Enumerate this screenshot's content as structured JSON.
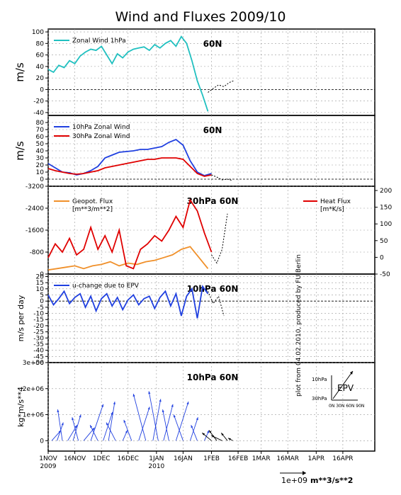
{
  "title": "Wind and Fluxes 2009/10",
  "credit": "plot from 04.02.2010, produced by FU Berlin",
  "x_axis": {
    "ticks": [
      "1NOV",
      "16NOV",
      "1DEC",
      "16DEC",
      "1JAN",
      "16JAN",
      "1FEB",
      "16FEB",
      "1MAR",
      "16MAR",
      "1APR",
      "16APR"
    ],
    "tick_days": [
      0,
      15,
      30,
      45,
      61,
      76,
      92,
      107,
      120,
      135,
      151,
      166
    ],
    "year_labels": [
      {
        "label": "2009",
        "day": 0
      },
      {
        "label": "2010",
        "day": 61
      }
    ],
    "range_days": [
      0,
      184
    ]
  },
  "scale_note": {
    "value": "1e+09",
    "unit": "m**3/s**2"
  },
  "chart_data": [
    {
      "type": "line",
      "label": "60N",
      "ylabel": "m/s",
      "ylim": [
        -45,
        105
      ],
      "yticks": [
        -40,
        -20,
        0,
        20,
        40,
        60,
        80,
        100
      ],
      "zero_line": true,
      "series": [
        {
          "name": "Zonal Wind 1hPa",
          "color": "#20c0c0",
          "x": [
            0,
            3,
            6,
            9,
            12,
            15,
            18,
            21,
            24,
            27,
            30,
            33,
            36,
            39,
            42,
            45,
            48,
            51,
            54,
            57,
            60,
            63,
            66,
            69,
            72,
            75,
            78,
            81,
            84,
            87,
            90
          ],
          "y": [
            35,
            30,
            42,
            38,
            50,
            45,
            58,
            65,
            70,
            68,
            75,
            60,
            45,
            62,
            55,
            65,
            70,
            72,
            74,
            68,
            78,
            72,
            80,
            85,
            75,
            92,
            80,
            50,
            15,
            -10,
            -38
          ]
        },
        {
          "name": "",
          "color": "#000000",
          "dashed": true,
          "x": [
            90,
            93,
            96,
            99,
            102,
            105
          ],
          "y": [
            -5,
            2,
            8,
            5,
            12,
            16
          ]
        }
      ]
    },
    {
      "type": "line",
      "label": "60N",
      "ylabel": "m/s",
      "ylim": [
        -10,
        90
      ],
      "yticks": [
        0,
        10,
        20,
        30,
        40,
        50,
        60,
        70,
        80
      ],
      "zero_line": true,
      "series": [
        {
          "name": "10hPa Zonal Wind",
          "color": "#2040e0",
          "x": [
            0,
            4,
            8,
            12,
            16,
            20,
            24,
            28,
            32,
            36,
            40,
            44,
            48,
            52,
            56,
            60,
            64,
            68,
            72,
            76,
            80,
            84,
            88,
            92
          ],
          "y": [
            22,
            16,
            10,
            9,
            6,
            8,
            12,
            18,
            30,
            34,
            38,
            39,
            40,
            42,
            42,
            44,
            46,
            52,
            56,
            48,
            26,
            10,
            5,
            8
          ]
        },
        {
          "name": "30hPa Zonal Wind",
          "color": "#e00000",
          "x": [
            0,
            4,
            8,
            12,
            16,
            20,
            24,
            28,
            32,
            36,
            40,
            44,
            48,
            52,
            56,
            60,
            64,
            68,
            72,
            76,
            80,
            84,
            88,
            92
          ],
          "y": [
            15,
            12,
            10,
            8,
            7,
            8,
            10,
            12,
            16,
            18,
            20,
            22,
            24,
            26,
            28,
            28,
            30,
            30,
            30,
            28,
            18,
            8,
            4,
            6
          ]
        },
        {
          "name": "",
          "color": "#000000",
          "dashed": true,
          "x": [
            92,
            95,
            98,
            101,
            104
          ],
          "y": [
            6,
            3,
            -1,
            0,
            -2
          ]
        }
      ]
    },
    {
      "type": "line",
      "label": "30hPa 60N",
      "ylim": [
        0,
        -3200
      ],
      "yticks": [
        -3200,
        -2400,
        -1600,
        -800,
        0
      ],
      "y2ticks": [
        -50,
        0,
        50,
        100,
        150,
        200
      ],
      "zero_line": true,
      "legend_left": {
        "name": "Geopot. Flux",
        "unit": "[m**3/m**2]",
        "color": "#f0902a"
      },
      "legend_right": {
        "name": "Heat Flux",
        "unit": "[m*K/s]",
        "color": "#e00000"
      },
      "series": [
        {
          "name": "Geopot. Flux",
          "color": "#f0902a",
          "x": [
            0,
            5,
            10,
            15,
            20,
            25,
            30,
            35,
            40,
            45,
            50,
            55,
            60,
            65,
            70,
            75,
            80,
            85,
            90
          ],
          "y": [
            -150,
            -200,
            -250,
            -300,
            -200,
            -300,
            -350,
            -450,
            -300,
            -400,
            -350,
            -450,
            -500,
            -600,
            -700,
            -900,
            -1000,
            -600,
            -200
          ]
        },
        {
          "name": "Heat Flux",
          "color": "#e00000",
          "x": [
            0,
            4,
            8,
            12,
            16,
            20,
            24,
            28,
            32,
            36,
            40,
            44,
            48,
            52,
            56,
            60,
            64,
            68,
            72,
            76,
            80,
            84,
            88,
            92
          ],
          "y": [
            -600,
            -1100,
            -800,
            -1300,
            -700,
            -900,
            -1700,
            -900,
            -1400,
            -800,
            -1600,
            -300,
            -200,
            -900,
            -1100,
            -1400,
            -1200,
            -1600,
            -2100,
            -1700,
            -2700,
            -2300,
            -1500,
            -800
          ]
        },
        {
          "name": "",
          "color": "#000000",
          "dashed": true,
          "x": [
            92,
            95,
            98,
            101
          ],
          "y": [
            -700,
            -400,
            -900,
            -2200
          ]
        }
      ]
    },
    {
      "type": "line",
      "label": "10hPa 60N",
      "ylabel": "m/s per day",
      "ylim": [
        -50,
        22
      ],
      "yticks": [
        -50,
        -45,
        -40,
        -35,
        -30,
        -25,
        -20,
        -15,
        -10,
        -5,
        0,
        5,
        10,
        15,
        20
      ],
      "zero_line": true,
      "series": [
        {
          "name": "u-change due to EPV",
          "color": "#2040e0",
          "x": [
            0,
            3,
            6,
            9,
            12,
            15,
            18,
            21,
            24,
            27,
            30,
            33,
            36,
            39,
            42,
            45,
            48,
            51,
            54,
            57,
            60,
            63,
            66,
            69,
            72,
            75,
            78,
            81,
            84,
            87,
            90
          ],
          "y": [
            5,
            -3,
            2,
            8,
            -2,
            3,
            6,
            -5,
            4,
            -8,
            2,
            6,
            -4,
            3,
            -7,
            1,
            5,
            -3,
            2,
            4,
            -6,
            3,
            8,
            -4,
            6,
            -12,
            4,
            10,
            -14,
            12,
            6
          ]
        },
        {
          "name": "",
          "color": "#000000",
          "dashed": true,
          "x": [
            90,
            93,
            96,
            99
          ],
          "y": [
            8,
            -2,
            4,
            -12
          ]
        }
      ]
    },
    {
      "type": "vector",
      "label": "10hPa 60N",
      "ylabel": "kg*m/s**4",
      "ylim": [
        -0.4,
        3.0
      ],
      "yticks": [
        0,
        1,
        2,
        3
      ],
      "ytick_labels": [
        "0",
        "1e+06",
        "2e+06",
        "3e+06"
      ],
      "inset": {
        "label": "EPV",
        "ylabels": [
          "10hPa",
          "30hPa"
        ],
        "xlabel": "0N 30N 60N 90N"
      },
      "vectors": [
        {
          "day": 2,
          "dx": 6,
          "dy": 0.4
        },
        {
          "day": 5,
          "dx": 4,
          "dy": 0.7
        },
        {
          "day": 8,
          "dx": -3,
          "dy": 1.2
        },
        {
          "day": 11,
          "dx": 6,
          "dy": 0.6
        },
        {
          "day": 14,
          "dx": 5,
          "dy": 1.0
        },
        {
          "day": 17,
          "dx": -4,
          "dy": 0.9
        },
        {
          "day": 20,
          "dx": 7,
          "dy": 0.5
        },
        {
          "day": 24,
          "dx": 8,
          "dy": 1.4
        },
        {
          "day": 28,
          "dx": -5,
          "dy": 0.6
        },
        {
          "day": 31,
          "dx": 6,
          "dy": 1.1
        },
        {
          "day": 34,
          "dx": 4,
          "dy": 1.5
        },
        {
          "day": 38,
          "dx": -6,
          "dy": 0.7
        },
        {
          "day": 42,
          "dx": 3,
          "dy": 0.4
        },
        {
          "day": 47,
          "dx": -5,
          "dy": 0.8
        },
        {
          "day": 51,
          "dx": 7,
          "dy": 1.3
        },
        {
          "day": 55,
          "dx": -8,
          "dy": 1.8
        },
        {
          "day": 59,
          "dx": 5,
          "dy": 1.6
        },
        {
          "day": 62,
          "dx": -6,
          "dy": 1.9
        },
        {
          "day": 65,
          "dx": 6,
          "dy": 1.4
        },
        {
          "day": 68,
          "dx": -4,
          "dy": 1.2
        },
        {
          "day": 72,
          "dx": 8,
          "dy": 1.5
        },
        {
          "day": 76,
          "dx": -6,
          "dy": 1.0
        },
        {
          "day": 80,
          "dx": 5,
          "dy": 0.9
        },
        {
          "day": 84,
          "dx": -4,
          "dy": 0.6
        },
        {
          "day": 88,
          "dx": 3,
          "dy": 0.4
        }
      ],
      "forecast_vectors": [
        {
          "day": 92,
          "dx": -6,
          "dy": 0.3
        },
        {
          "day": 95,
          "dx": -5,
          "dy": 0.4
        },
        {
          "day": 98,
          "dx": -7,
          "dy": 0.2
        },
        {
          "day": 101,
          "dx": -4,
          "dy": 0.3
        },
        {
          "day": 104,
          "dx": -3,
          "dy": 0.1
        }
      ]
    }
  ]
}
